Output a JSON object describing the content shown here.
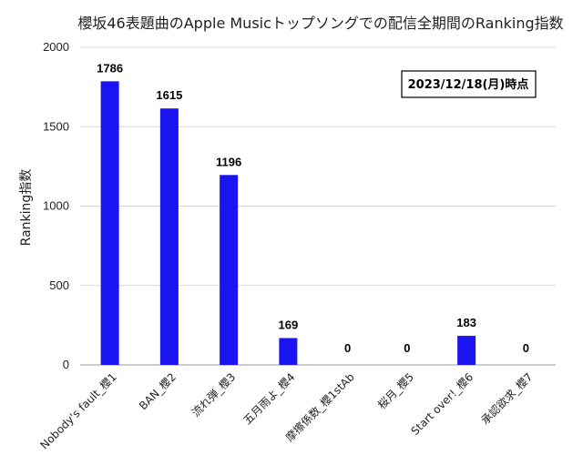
{
  "chart_data": {
    "type": "bar",
    "title": "櫻坂46表題曲のApple Musicトップソングでの配信全期間のRanking指数",
    "ylabel": "Ranking指数",
    "xlabel": "",
    "ylim": [
      0,
      2000
    ],
    "yticks": [
      0,
      500,
      1000,
      1500,
      2000
    ],
    "grid": true,
    "categories": [
      "Nobody's fault_櫻1",
      "BAN_櫻2",
      "流れ弾_櫻3",
      "五月雨よ_櫻4",
      "摩擦係数_櫻1stAb",
      "桜月_櫻5",
      "Start over!_櫻6",
      "承認欲求_櫻7"
    ],
    "values": [
      1786,
      1615,
      1196,
      169,
      0,
      0,
      183,
      0
    ],
    "bar_color": "#1a14f0",
    "annotation": "2023/12/18(月)時点"
  }
}
